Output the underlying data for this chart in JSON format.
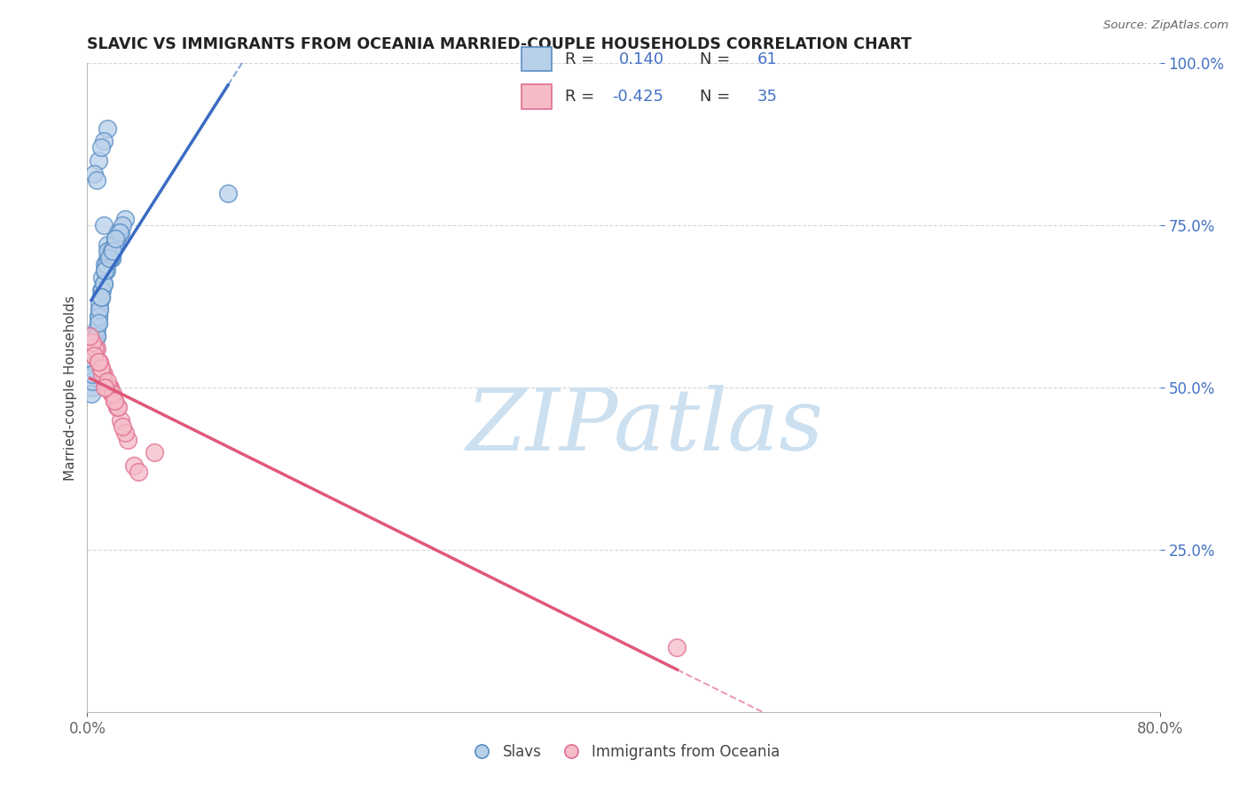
{
  "title": "SLAVIC VS IMMIGRANTS FROM OCEANIA MARRIED-COUPLE HOUSEHOLDS CORRELATION CHART",
  "source_text": "Source: ZipAtlas.com",
  "ylabel": "Married-couple Households",
  "xlim": [
    0.0,
    80.0
  ],
  "ylim": [
    0.0,
    100.0
  ],
  "xtick_positions": [
    0.0,
    80.0
  ],
  "xticklabels": [
    "0.0%",
    "80.0%"
  ],
  "ytick_positions": [
    25.0,
    50.0,
    75.0,
    100.0
  ],
  "yticklabels": [
    "25.0%",
    "50.0%",
    "75.0%",
    "100.0%"
  ],
  "blue_fill": "#b8d0ea",
  "blue_edge": "#5b8ec4",
  "pink_fill": "#f5bcc8",
  "pink_edge": "#e07090",
  "blue_line": "#3a6bc4",
  "pink_line": "#e05878",
  "watermark": "ZIPatlas",
  "watermark_color": "#cce0f0",
  "legend_r1_label": "R =  0.140   N = 61",
  "legend_r2_label": "R = -0.425   N = 35",
  "slavs_x": [
    0.5,
    1.2,
    1.5,
    0.8,
    1.0,
    0.3,
    0.7,
    1.8,
    2.2,
    0.4,
    1.1,
    0.6,
    2.5,
    1.3,
    0.9,
    1.6,
    2.0,
    0.5,
    1.4,
    0.8,
    1.7,
    2.8,
    0.6,
    1.0,
    0.4,
    1.9,
    2.3,
    0.7,
    1.5,
    1.2,
    0.3,
    0.9,
    1.6,
    2.1,
    0.5,
    1.8,
    0.8,
    1.3,
    2.6,
    1.1,
    0.6,
    1.4,
    0.4,
    2.0,
    1.7,
    0.9,
    1.5,
    0.7,
    1.2,
    1.0,
    0.5,
    2.4,
    1.8,
    0.8,
    1.3,
    1.6,
    0.4,
    1.0,
    10.5,
    1.9,
    2.1
  ],
  "slavs_y": [
    55.0,
    75.0,
    72.0,
    60.0,
    65.0,
    52.0,
    58.0,
    70.0,
    73.0,
    53.0,
    67.0,
    57.0,
    74.0,
    69.0,
    62.0,
    71.0,
    72.0,
    54.0,
    68.0,
    61.0,
    70.0,
    76.0,
    56.0,
    64.0,
    50.0,
    71.0,
    74.0,
    59.0,
    70.0,
    66.0,
    49.0,
    63.0,
    71.0,
    73.0,
    55.0,
    70.0,
    61.0,
    68.0,
    75.0,
    65.0,
    57.0,
    69.0,
    51.0,
    72.0,
    70.0,
    62.0,
    71.0,
    58.0,
    66.0,
    64.0,
    54.0,
    74.0,
    71.0,
    60.0,
    68.0,
    70.0,
    52.0,
    64.0,
    80.0,
    71.0,
    73.0
  ],
  "slavs_y_high": [
    85.0,
    90.0,
    88.0,
    83.0,
    87.0,
    82.0
  ],
  "slavs_x_high": [
    0.8,
    1.5,
    1.2,
    0.5,
    1.0,
    0.7
  ],
  "oceania_x": [
    0.5,
    1.2,
    2.0,
    1.5,
    2.5,
    0.8,
    1.0,
    3.0,
    0.3,
    1.8,
    0.7,
    1.3,
    2.2,
    0.6,
    1.7,
    2.8,
    0.4,
    1.1,
    1.6,
    2.3,
    0.9,
    1.4,
    2.6,
    0.2,
    1.9,
    3.5,
    0.5,
    1.0,
    2.0,
    1.5,
    0.8,
    1.3,
    5.0,
    44.0,
    3.8
  ],
  "oceania_y": [
    55.0,
    52.0,
    48.0,
    50.0,
    45.0,
    54.0,
    53.0,
    42.0,
    57.0,
    49.0,
    56.0,
    51.0,
    47.0,
    56.0,
    50.0,
    43.0,
    57.0,
    52.0,
    50.0,
    47.0,
    54.0,
    50.0,
    44.0,
    58.0,
    49.0,
    38.0,
    55.0,
    53.0,
    48.0,
    51.0,
    54.0,
    50.0,
    40.0,
    10.0,
    37.0
  ]
}
